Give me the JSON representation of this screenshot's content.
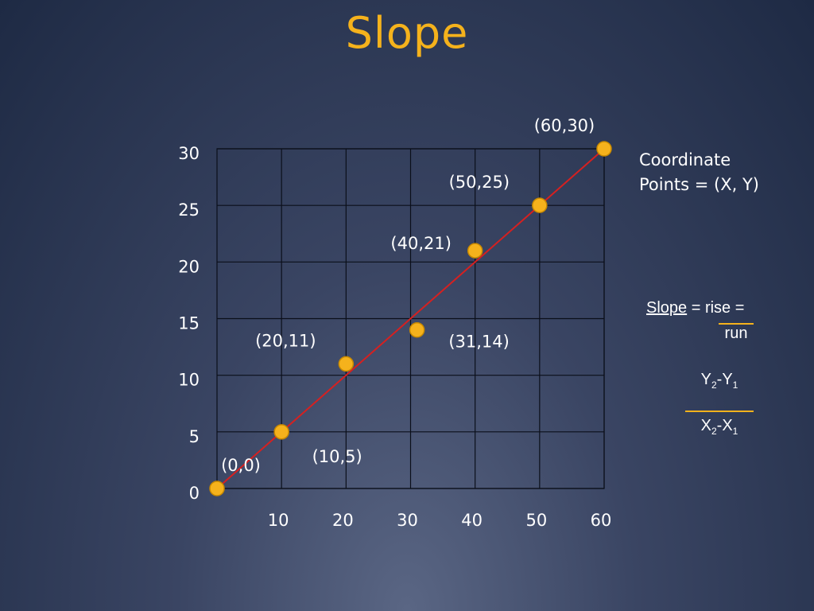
{
  "title": "Slope",
  "coordinate_note": [
    "Coordinate",
    "Points = (X, Y)"
  ],
  "slope_formula": {
    "slope_word": "Slope",
    "rest": " = rise = ",
    "run_word": "run",
    "numerator": {
      "a": "Y",
      "a_sub": "2",
      "sep": "-",
      "b": "Y",
      "b_sub": "1"
    },
    "denominator": {
      "a": "X",
      "a_sub": "2",
      "sep": "-",
      "b": "X",
      "b_sub": "1"
    }
  },
  "colors": {
    "title": "#f5b21c",
    "point": "#f5b21c",
    "line": "#d62020",
    "grid": "#0b0f1a"
  },
  "chart_data": {
    "type": "scatter",
    "x_ticks": [
      "10",
      "20",
      "30",
      "40",
      "50",
      "60"
    ],
    "x_tick_values": [
      10,
      20,
      30,
      40,
      50,
      60
    ],
    "y_ticks": [
      "0",
      "5",
      "10",
      "15",
      "20",
      "25",
      "30"
    ],
    "y_tick_values": [
      0,
      5,
      10,
      15,
      20,
      25,
      30
    ],
    "xlim": [
      0,
      60
    ],
    "ylim": [
      0,
      30
    ],
    "grid": true,
    "points": [
      {
        "x": 0,
        "y": 0,
        "label": "(0,0)"
      },
      {
        "x": 10,
        "y": 5,
        "label": "(10,5)"
      },
      {
        "x": 20,
        "y": 11,
        "label": "(20,11)"
      },
      {
        "x": 31,
        "y": 14,
        "label": "(31,14)"
      },
      {
        "x": 40,
        "y": 21,
        "label": "(40,21)"
      },
      {
        "x": 50,
        "y": 25,
        "label": "(50,25)"
      },
      {
        "x": 60,
        "y": 30,
        "label": "(60,30)"
      }
    ],
    "line": {
      "from": [
        0,
        0
      ],
      "to": [
        60,
        30
      ]
    }
  }
}
